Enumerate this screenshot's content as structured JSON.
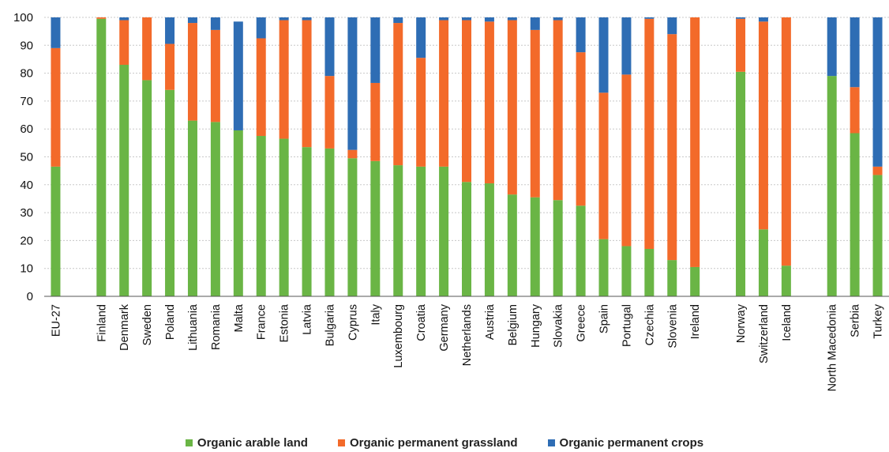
{
  "chart_data": {
    "type": "bar",
    "stacked": true,
    "categories": [
      "EU-27",
      "",
      "Finland",
      "Denmark",
      "Sweden",
      "Poland",
      "Lithuania",
      "Romania",
      "Malta",
      "France",
      "Estonia",
      "Latvia",
      "Bulgaria",
      "Cyprus",
      "Italy",
      "Luxembourg",
      "Croatia",
      "Germany",
      "Netherlands",
      "Austria",
      "Belgium",
      "Hungary",
      "Slovakia",
      "Greece",
      "Spain",
      "Portugal",
      "Czechia",
      "Slovenia",
      "Ireland",
      "",
      "Norway",
      "Switzerland",
      "Iceland",
      "",
      "North Macedonia",
      "Serbia",
      "Turkey"
    ],
    "series": [
      {
        "name": "Organic arable land",
        "color": "#6ab545",
        "values": [
          46.5,
          null,
          99.5,
          83,
          77.5,
          74,
          63,
          62.5,
          59.5,
          57.5,
          56.5,
          53.5,
          53,
          49.5,
          48.5,
          47,
          46.5,
          46.5,
          41,
          40.5,
          36.5,
          35.5,
          34.5,
          32.5,
          20.5,
          18,
          17,
          13,
          10.5,
          null,
          80.5,
          24,
          11,
          null,
          79,
          58.5,
          43.5
        ]
      },
      {
        "name": "Organic permanent grassland",
        "color": "#f36a2a",
        "values": [
          42.5,
          null,
          0.5,
          16,
          22.5,
          16.5,
          35,
          33,
          0,
          35,
          42.5,
          45.5,
          26,
          3,
          28,
          51,
          39,
          52.5,
          58,
          58,
          62.5,
          60,
          64.5,
          55,
          52.5,
          61.5,
          82.5,
          81,
          89.5,
          null,
          19,
          74.5,
          89,
          null,
          0,
          16.5,
          3
        ]
      },
      {
        "name": "Organic permanent crops",
        "color": "#2e6db4",
        "values": [
          11,
          null,
          0,
          1,
          0,
          9.5,
          2,
          4.5,
          39,
          7.5,
          1,
          1,
          21,
          47.5,
          23.5,
          2,
          14.5,
          1,
          1,
          1.5,
          1,
          4.5,
          1,
          12.5,
          27,
          20.5,
          0.5,
          6,
          0,
          null,
          0.5,
          1.5,
          0,
          null,
          21,
          25,
          53.5
        ]
      }
    ],
    "ylim": [
      0,
      100
    ],
    "yticks": [
      0,
      10,
      20,
      30,
      40,
      50,
      60,
      70,
      80,
      90,
      100
    ],
    "grid": true,
    "legend_position": "bottom"
  },
  "legend": [
    {
      "label": "Organic arable land",
      "color": "#6ab545"
    },
    {
      "label": "Organic permanent grassland",
      "color": "#f36a2a"
    },
    {
      "label": "Organic permanent crops",
      "color": "#2e6db4"
    }
  ]
}
